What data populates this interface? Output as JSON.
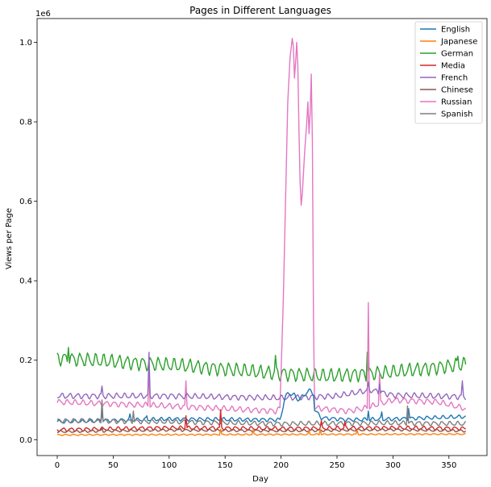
{
  "chart_data": {
    "type": "line",
    "title": "Pages in Different Languages",
    "xlabel": "Day",
    "ylabel": "Views per Page",
    "y_offset_label": "1e6",
    "xlim": [
      -18,
      384
    ],
    "ylim": [
      -40000,
      1060000
    ],
    "x_ticks": [
      0,
      50,
      100,
      150,
      200,
      250,
      300,
      350
    ],
    "y_ticks": [
      0,
      200000,
      400000,
      600000,
      800000,
      1000000
    ],
    "y_tick_labels": [
      "0.0",
      "0.2",
      "0.4",
      "0.6",
      "0.8",
      "1.0"
    ],
    "grid": false,
    "legend_position": "top-right",
    "days": 366,
    "series": [
      {
        "name": "English",
        "color": "#1f77b4",
        "base": 50000,
        "weekly_amp": 4000,
        "trend": [
          [
            0,
            45000
          ],
          [
            100,
            52000
          ],
          [
            199,
            50000
          ],
          [
            200,
            60000
          ],
          [
            203,
            100000
          ],
          [
            206,
            118000
          ],
          [
            212,
            112000
          ],
          [
            215,
            100000
          ],
          [
            220,
            110000
          ],
          [
            225,
            125000
          ],
          [
            229,
            115000
          ],
          [
            230,
            75000
          ],
          [
            236,
            55000
          ],
          [
            260,
            50000
          ],
          [
            300,
            52000
          ],
          [
            365,
            58000
          ]
        ],
        "spikes": [
          [
            40,
            70000
          ],
          [
            65,
            65000
          ],
          [
            80,
            60000
          ],
          [
            278,
            72000
          ],
          [
            290,
            70000
          ],
          [
            314,
            78000
          ]
        ]
      },
      {
        "name": "Japanese",
        "color": "#ff7f0e",
        "base": 12000,
        "weekly_amp": 1500,
        "trend": [
          [
            0,
            12000
          ],
          [
            365,
            14000
          ]
        ],
        "spikes": [
          [
            146,
            26000
          ],
          [
            175,
            24000
          ],
          [
            225,
            22000
          ],
          [
            235,
            25000
          ],
          [
            268,
            24000
          ]
        ]
      },
      {
        "name": "German",
        "color": "#2ca02c",
        "base": 200000,
        "weekly_amp": 15000,
        "trend": [
          [
            0,
            205000
          ],
          [
            60,
            195000
          ],
          [
            120,
            185000
          ],
          [
            180,
            170000
          ],
          [
            240,
            160000
          ],
          [
            300,
            170000
          ],
          [
            365,
            190000
          ]
        ],
        "spikes": [
          [
            10,
            232000
          ],
          [
            195,
            212000
          ],
          [
            277,
            220000
          ],
          [
            358,
            210000
          ]
        ]
      },
      {
        "name": "Media",
        "color": "#d62728",
        "base": 27000,
        "weekly_amp": 4000,
        "trend": [
          [
            0,
            25000
          ],
          [
            100,
            30000
          ],
          [
            200,
            28000
          ],
          [
            300,
            30000
          ],
          [
            365,
            28000
          ]
        ],
        "spikes": [
          [
            115,
            60000
          ],
          [
            146,
            75000
          ],
          [
            236,
            48000
          ],
          [
            257,
            45000
          ]
        ]
      },
      {
        "name": "French",
        "color": "#9467bd",
        "base": 110000,
        "weekly_amp": 6000,
        "trend": [
          [
            0,
            110000
          ],
          [
            100,
            110000
          ],
          [
            200,
            105000
          ],
          [
            250,
            110000
          ],
          [
            280,
            125000
          ],
          [
            300,
            112000
          ],
          [
            365,
            108000
          ]
        ],
        "spikes": [
          [
            40,
            135000
          ],
          [
            82,
            220000
          ],
          [
            278,
            145000
          ],
          [
            288,
            140000
          ],
          [
            362,
            148000
          ]
        ]
      },
      {
        "name": "Chinese",
        "color": "#8c564b",
        "base": 22000,
        "weekly_amp": 2500,
        "trend": [
          [
            0,
            20000
          ],
          [
            100,
            24000
          ],
          [
            200,
            22000
          ],
          [
            300,
            25000
          ],
          [
            365,
            22000
          ]
        ],
        "spikes": [
          [
            40,
            30000
          ],
          [
            110,
            28000
          ],
          [
            190,
            28000
          ]
        ]
      },
      {
        "name": "Russian",
        "color": "#e377c2",
        "base": 90000,
        "weekly_amp": 6000,
        "trend": [
          [
            0,
            95000
          ],
          [
            100,
            85000
          ],
          [
            150,
            78000
          ],
          [
            195,
            72000
          ],
          [
            199,
            78000
          ],
          [
            202,
            350000
          ],
          [
            204,
            600000
          ],
          [
            206,
            850000
          ],
          [
            208,
            960000
          ],
          [
            210,
            1010000
          ],
          [
            211,
            990000
          ],
          [
            212,
            910000
          ],
          [
            213,
            950000
          ],
          [
            214,
            1000000
          ],
          [
            215,
            940000
          ],
          [
            216,
            780000
          ],
          [
            217,
            650000
          ],
          [
            218,
            590000
          ],
          [
            219,
            620000
          ],
          [
            221,
            720000
          ],
          [
            223,
            800000
          ],
          [
            224,
            850000
          ],
          [
            225,
            770000
          ],
          [
            226,
            820000
          ],
          [
            227,
            920000
          ],
          [
            228,
            750000
          ],
          [
            229,
            300000
          ],
          [
            230,
            80000
          ],
          [
            260,
            72000
          ],
          [
            276,
            80000
          ],
          [
            300,
            100000
          ],
          [
            340,
            95000
          ],
          [
            365,
            78000
          ]
        ],
        "spikes": [
          [
            82,
            190000
          ],
          [
            115,
            148000
          ],
          [
            278,
            345000
          ],
          [
            288,
            168000
          ]
        ]
      },
      {
        "name": "Spanish",
        "color": "#7f7f7f",
        "base": 45000,
        "weekly_amp": 5000,
        "trend": [
          [
            0,
            48000
          ],
          [
            100,
            45000
          ],
          [
            200,
            40000
          ],
          [
            300,
            42000
          ],
          [
            365,
            40000
          ]
        ],
        "spikes": [
          [
            40,
            100000
          ],
          [
            68,
            72000
          ],
          [
            313,
            85000
          ]
        ]
      }
    ]
  }
}
